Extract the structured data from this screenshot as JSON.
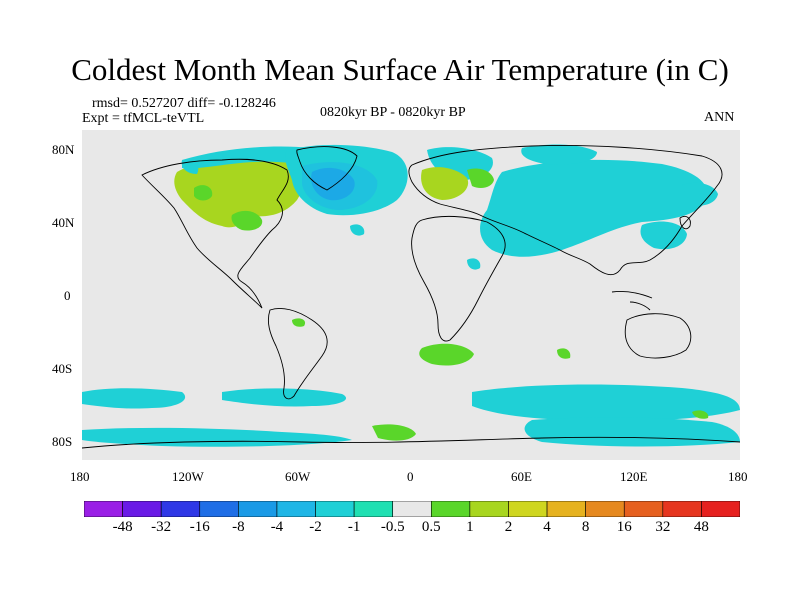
{
  "title": "Coldest Month Mean Surface Air Temperature (in C)",
  "stats": {
    "rmsd_diff": "rmsd= 0.527207 diff= -0.128246",
    "expt": "Expt = tfMCL-teVTL",
    "period": "0820kyr BP - 0820kyr BP",
    "season": "ANN"
  },
  "axes": {
    "lat_ticks": [
      "80N",
      "40N",
      "0",
      "40S",
      "80S"
    ],
    "lat_values": [
      80,
      40,
      0,
      -40,
      -80
    ],
    "lon_ticks": [
      "180",
      "120W",
      "60W",
      "0",
      "60E",
      "120E",
      "180"
    ],
    "lon_values": [
      -180,
      -120,
      -60,
      0,
      60,
      120,
      180
    ],
    "lat_range": [
      -90,
      90
    ],
    "lon_range": [
      -180,
      180
    ]
  },
  "colorbar": {
    "labels": [
      "-48",
      "-32",
      "-16",
      "-8",
      "-4",
      "-2",
      "-1",
      "-0.5",
      "0.5",
      "1",
      "2",
      "4",
      "8",
      "16",
      "32",
      "48"
    ],
    "colors": [
      "#9a1fe6",
      "#6a1ae6",
      "#2f38e6",
      "#1f6ee6",
      "#1a9ae6",
      "#1fb6e6",
      "#1fd0d6",
      "#1fe0b2",
      "#e8e8e8",
      "#5ad62a",
      "#a8d61f",
      "#cfd61f",
      "#e6b21f",
      "#e6891f",
      "#e6601f",
      "#e6361f",
      "#e6211f"
    ]
  },
  "colors": {
    "background": "#e8e8e8",
    "cyan": "#1fd0d6",
    "aqua": "#1fe0b2",
    "light_blue": "#1fb6e6",
    "blue": "#1a9ae6",
    "green": "#5ad62a",
    "yellow_green": "#a8d61f"
  }
}
